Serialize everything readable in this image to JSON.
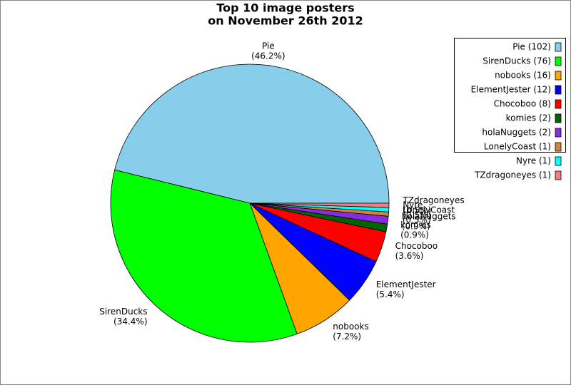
{
  "chart_data": {
    "type": "pie",
    "title": [
      "Top 10 image posters",
      "on November 26th 2012"
    ],
    "categories": [
      "Pie",
      "SirenDucks",
      "nobooks",
      "ElementJester",
      "Chocoboo",
      "komies",
      "holaNuggets",
      "LonelyCoast",
      "Nyre",
      "TZdragoneyes"
    ],
    "values": [
      46.2,
      34.4,
      7.2,
      5.4,
      3.6,
      0.9,
      0.9,
      0.5,
      0.5,
      0.5
    ],
    "value_labels": [
      "(46.2%)",
      "(34.4%)",
      "(7.2%)",
      "(5.4%)",
      "(3.6%)",
      "(0.9%)",
      "(0.9%)",
      "(0.5%)",
      "(0.5%)",
      "(0.5%)"
    ],
    "legend_labels": [
      "Pie (102)",
      "SirenDucks (76)",
      "nobooks (16)",
      "ElementJester (12)",
      "Chocoboo (8)",
      "komies (2)",
      "holaNuggets (2)",
      "LonelyCoast (1)",
      "Nyre (1)",
      "TZdragoneyes (1)"
    ],
    "colors": [
      "#87ceeb",
      "#00ff00",
      "#ffa500",
      "#0000ff",
      "#ff0000",
      "#006400",
      "#8a2be2",
      "#cd853f",
      "#00ffff",
      "#f08080"
    ],
    "legend": "upper right"
  }
}
